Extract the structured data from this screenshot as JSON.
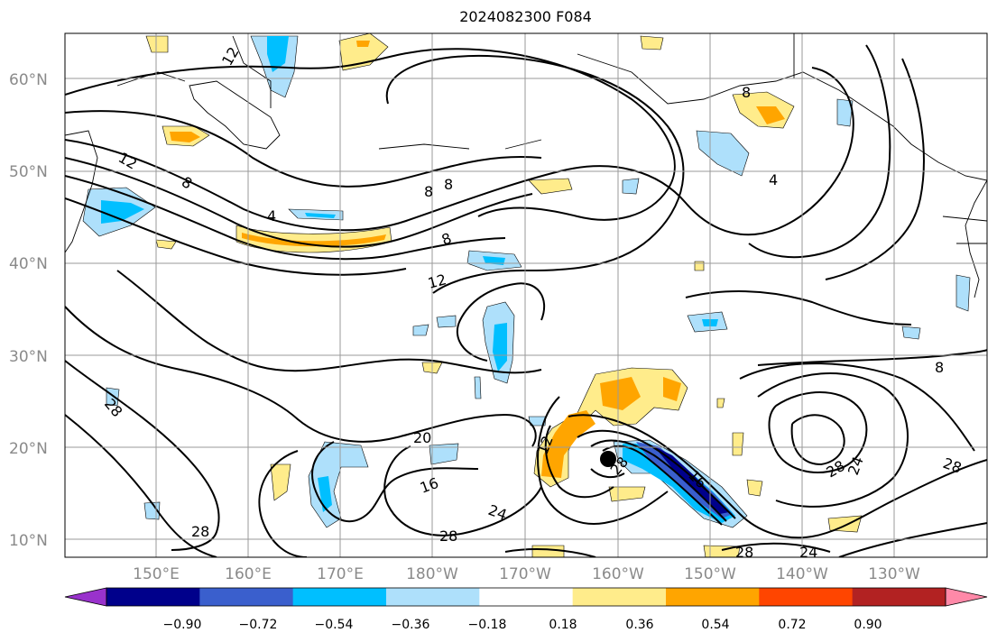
{
  "title": "2024082300 F084",
  "latitude_labels": [
    "60°N",
    "50°N",
    "40°N",
    "30°N",
    "20°N",
    "10°N"
  ],
  "longitude_labels": [
    "150°E",
    "160°E",
    "170°E",
    "180°W",
    "170°W",
    "160°W",
    "150°W",
    "140°W",
    "130°W"
  ],
  "colorbar": {
    "tick_labels": [
      "−0.90",
      "−0.72",
      "−0.54",
      "−0.36",
      "−0.18",
      "0.18",
      "0.36",
      "0.54",
      "0.72",
      "0.90"
    ],
    "colors": [
      "#9932cc",
      "#00008b",
      "#3a5fcd",
      "#00bfff",
      "#aee0fb",
      "#ffffff",
      "#ffec8b",
      "#ffa500",
      "#ff4500",
      "#b22222",
      "#ff89a8"
    ]
  },
  "contour_labels": [
    "12",
    "8",
    "4",
    "12",
    "8",
    "8",
    "4",
    "8",
    "8",
    "12",
    "20",
    "16",
    "24",
    "28",
    "28",
    "28",
    "12",
    "28",
    "16",
    "28",
    "24",
    "8",
    "24",
    "28",
    "28"
  ],
  "storm_marker": "black dot"
}
